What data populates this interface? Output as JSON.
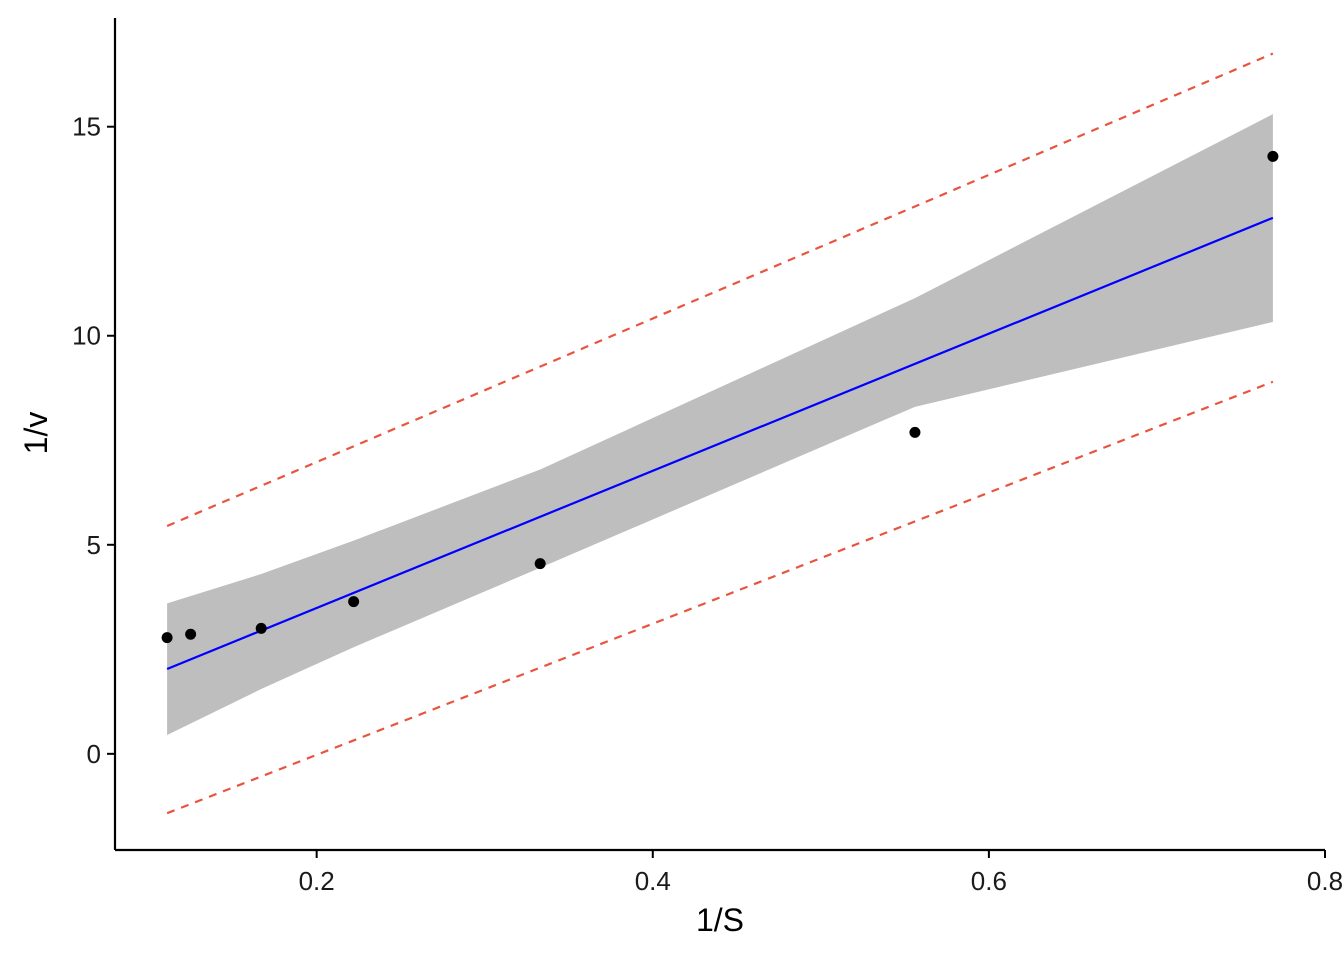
{
  "chart_data": {
    "type": "scatter",
    "xlabel": "1/S",
    "ylabel": "1/v",
    "xlim": [
      0.08,
      0.8
    ],
    "ylim": [
      -2.3,
      17.6
    ],
    "x_ticks": [
      0.2,
      0.4,
      0.6,
      0.8
    ],
    "x_tick_labels": [
      "0.2",
      "0.4",
      "0.6",
      "0.8"
    ],
    "y_ticks": [
      0,
      5,
      10,
      15
    ],
    "y_tick_labels": [
      "0",
      "5",
      "10",
      "15"
    ],
    "grid": false,
    "colors": {
      "points": "#000000",
      "fit_line": "#0000ff",
      "confidence_band": "#bebebe",
      "prediction_band": "#e8553f",
      "axis": "#000000"
    },
    "points": {
      "x": [
        0.111,
        0.125,
        0.167,
        0.222,
        0.333,
        0.556,
        0.769
      ],
      "y": [
        2.78,
        2.86,
        3.0,
        3.64,
        4.55,
        7.69,
        14.29
      ]
    },
    "fit_line": {
      "x": [
        0.111,
        0.769
      ],
      "y": [
        2.03,
        12.82
      ]
    },
    "confidence_band": {
      "x": [
        0.111,
        0.167,
        0.222,
        0.333,
        0.556,
        0.769
      ],
      "lower": [
        0.45,
        1.55,
        2.55,
        4.45,
        8.3,
        10.33
      ],
      "upper": [
        3.6,
        4.3,
        5.1,
        6.8,
        10.9,
        15.3
      ]
    },
    "prediction_band": {
      "x": [
        0.111,
        0.769
      ],
      "lower": [
        -1.42,
        8.9
      ],
      "upper": [
        5.45,
        16.75
      ]
    }
  }
}
